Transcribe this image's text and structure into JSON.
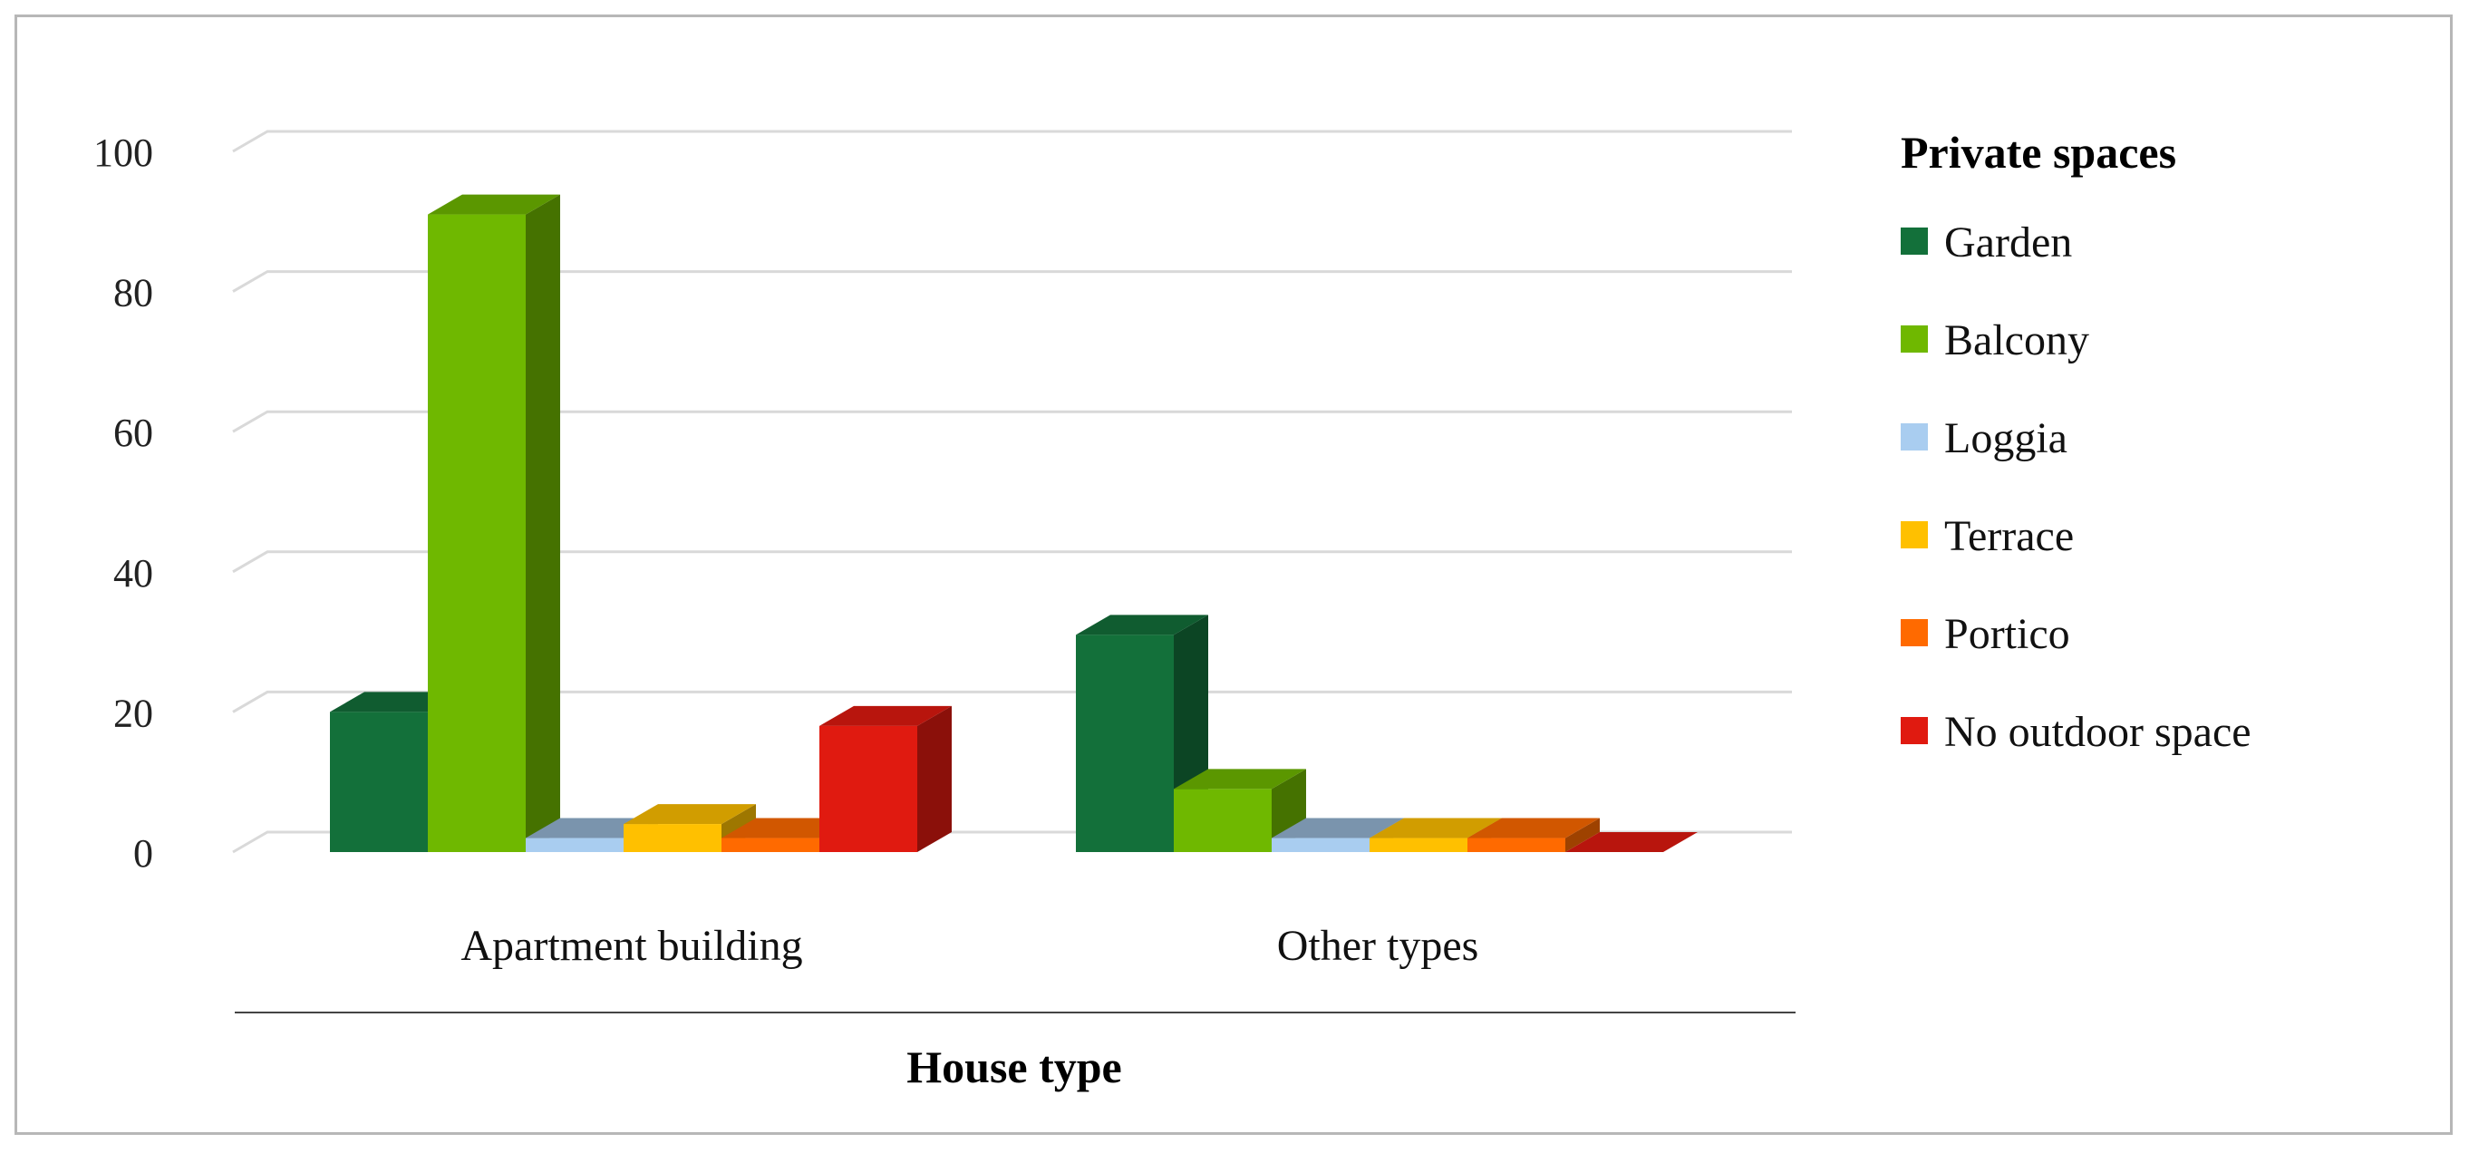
{
  "chart_data": {
    "type": "bar",
    "title": "",
    "xlabel": "House type",
    "ylabel": "",
    "ylim": [
      0,
      100
    ],
    "yticks": [
      0,
      20,
      40,
      60,
      80,
      100
    ],
    "categories": [
      "Apartment building",
      "Other types"
    ],
    "legend_title": "Private spaces",
    "legend_position": "right",
    "grid": true,
    "style": "3d-clustered-column",
    "series": [
      {
        "name": "Garden",
        "values": [
          20,
          31
        ],
        "color": "#13703a"
      },
      {
        "name": "Balcony",
        "values": [
          91,
          9
        ],
        "color": "#6fb800"
      },
      {
        "name": "Loggia",
        "values": [
          2,
          2
        ],
        "color": "#a9cdf0"
      },
      {
        "name": "Terrace",
        "values": [
          4,
          2
        ],
        "color": "#ffc000"
      },
      {
        "name": "Portico",
        "values": [
          2,
          2
        ],
        "color": "#ff6a00"
      },
      {
        "name": "No outdoor space",
        "values": [
          18,
          0
        ],
        "color": "#e01a10"
      }
    ]
  }
}
